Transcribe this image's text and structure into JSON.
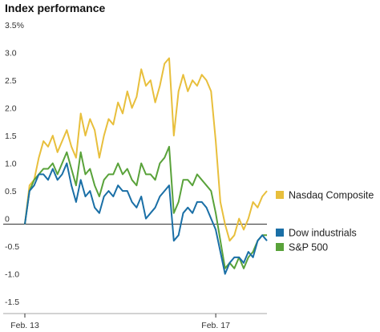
{
  "chart_data": {
    "type": "line",
    "title": "Index performance",
    "xlabel": "",
    "ylabel": "",
    "ylim": [
      -1.5,
      3.5
    ],
    "y_ticks": [
      -1.5,
      -1.0,
      -0.5,
      0,
      0.5,
      1.0,
      1.5,
      2.0,
      2.5,
      3.0,
      3.5
    ],
    "y_tick_labels": [
      "-1.5",
      "-1.0",
      "-0.5",
      "0",
      "0.5",
      "1.0",
      "1.5",
      "2.0",
      "2.5",
      "3.0",
      "3.5%"
    ],
    "x_tick_labels": [
      "Feb. 13",
      "Feb. 17"
    ],
    "x_tick_positions": [
      0,
      41
    ],
    "xlim": [
      0,
      52
    ],
    "grid": false,
    "zero_line": true,
    "colors": {
      "nasdaq": "#e8bf3c",
      "dow": "#1a6fa6",
      "sp500": "#59a23a",
      "axis": "#333333"
    },
    "series": [
      {
        "name": "Nasdaq Composite",
        "key": "nasdaq",
        "color": "#e8bf3c",
        "values": [
          0.0,
          0.7,
          0.8,
          1.2,
          1.5,
          1.4,
          1.6,
          1.3,
          1.5,
          1.7,
          1.4,
          1.2,
          2.0,
          1.6,
          1.9,
          1.7,
          1.2,
          1.6,
          1.9,
          1.8,
          2.2,
          2.0,
          2.4,
          2.1,
          2.3,
          2.8,
          2.5,
          2.6,
          2.2,
          2.5,
          2.9,
          3.0,
          1.6,
          2.4,
          2.7,
          2.4,
          2.6,
          2.5,
          2.7,
          2.6,
          2.4,
          1.5,
          0.4,
          0.0,
          -0.3,
          -0.2,
          0.1,
          -0.1,
          0.1,
          0.4,
          0.3,
          0.5,
          0.6
        ]
      },
      {
        "name": "Dow industrials",
        "key": "dow",
        "color": "#1a6fa6",
        "values": [
          0.0,
          0.6,
          0.7,
          0.9,
          0.9,
          0.8,
          1.0,
          0.8,
          0.9,
          1.1,
          0.7,
          0.4,
          0.8,
          0.5,
          0.6,
          0.3,
          0.2,
          0.5,
          0.6,
          0.5,
          0.7,
          0.6,
          0.6,
          0.4,
          0.3,
          0.5,
          0.1,
          0.2,
          0.3,
          0.5,
          0.6,
          0.7,
          -0.3,
          -0.2,
          0.2,
          0.3,
          0.2,
          0.4,
          0.4,
          0.3,
          0.1,
          -0.1,
          -0.5,
          -0.9,
          -0.7,
          -0.6,
          -0.6,
          -0.7,
          -0.5,
          -0.6,
          -0.3,
          -0.2,
          -0.3
        ]
      },
      {
        "name": "S&P 500",
        "key": "sp500",
        "color": "#59a23a",
        "values": [
          0.0,
          0.6,
          0.8,
          0.9,
          1.0,
          1.0,
          1.1,
          0.9,
          1.1,
          1.3,
          1.0,
          0.7,
          1.3,
          0.9,
          1.0,
          0.7,
          0.5,
          0.8,
          0.9,
          0.9,
          1.1,
          0.9,
          1.0,
          0.8,
          0.7,
          1.1,
          0.9,
          0.9,
          0.8,
          1.1,
          1.2,
          1.4,
          0.2,
          0.4,
          0.8,
          0.8,
          0.7,
          0.9,
          0.8,
          0.7,
          0.6,
          0.2,
          -0.3,
          -0.8,
          -0.7,
          -0.8,
          -0.6,
          -0.8,
          -0.6,
          -0.5,
          -0.3,
          -0.2,
          -0.2
        ]
      }
    ],
    "legend_position": "right"
  }
}
